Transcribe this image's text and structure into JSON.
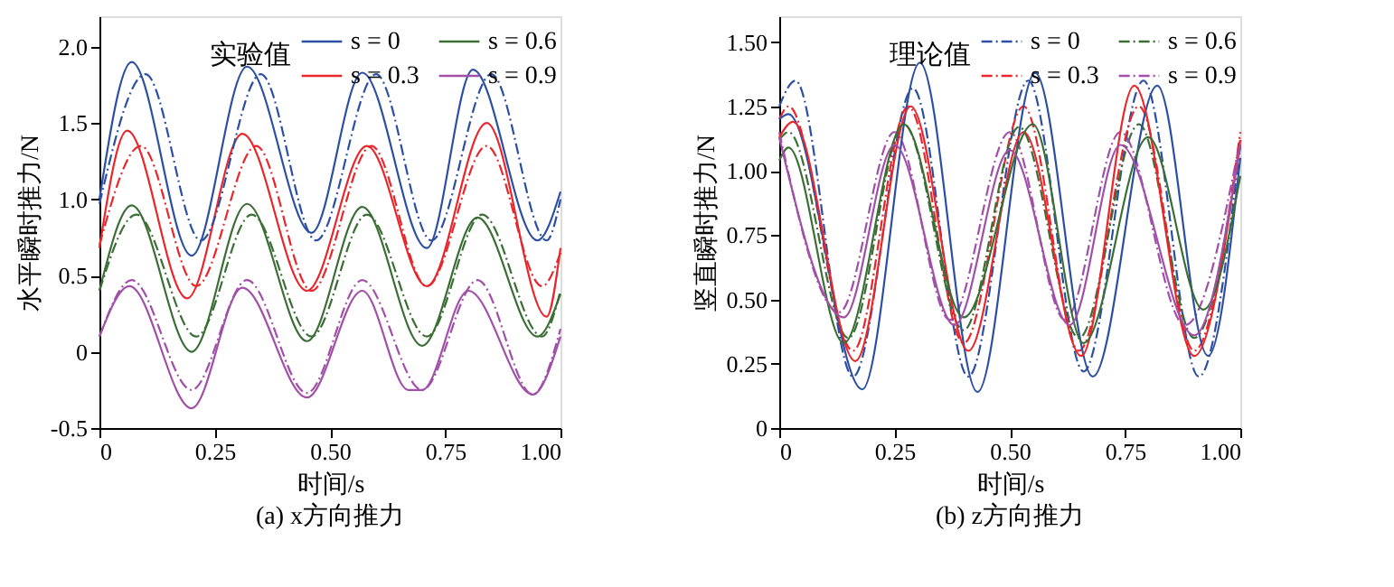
{
  "chart_data": [
    {
      "type": "line",
      "title": "(a) x方向推力",
      "xlabel": "时间/s",
      "ylabel": "水平瞬时推力/N",
      "legend_title": "实验值",
      "legend": "top right",
      "grid": false,
      "xlim": [
        0,
        1
      ],
      "xticks": [
        0,
        {
          "value": 0.25,
          "label": "0.25"
        },
        {
          "value": 0.5,
          "label": "0.50"
        },
        {
          "value": 0.75,
          "label": "0.75"
        },
        {
          "value": 1,
          "label": "1.00"
        }
      ],
      "ylim": [
        -0.5,
        2.2
      ],
      "yticks": [
        -0.5,
        0,
        {
          "value": 0.5,
          "label": "0.5"
        },
        {
          "value": 1,
          "label": "1.0"
        },
        {
          "value": 1.5,
          "label": "1.5"
        },
        {
          "value": 2,
          "label": "2.0"
        }
      ],
      "series": [
        {
          "name": "s = 0",
          "color": "#2c4fa3",
          "line_style": "solid",
          "x": [
            0,
            0.07,
            0.2,
            0.32,
            0.46,
            0.57,
            0.71,
            0.81,
            0.95,
            1.0
          ],
          "values": [
            1.0,
            1.9,
            0.63,
            1.87,
            0.78,
            1.83,
            0.68,
            1.85,
            0.73,
            1.05
          ]
        },
        {
          "name": "s = 0.3",
          "color": "#e8262b",
          "line_style": "solid",
          "x": [
            0,
            0.06,
            0.19,
            0.31,
            0.45,
            0.58,
            0.71,
            0.84,
            0.97,
            1.0
          ],
          "values": [
            0.68,
            1.45,
            0.35,
            1.43,
            0.4,
            1.35,
            0.43,
            1.5,
            0.23,
            0.68
          ]
        },
        {
          "name": "s = 0.6",
          "color": "#3a6e35",
          "line_style": "solid",
          "x": [
            0,
            0.07,
            0.2,
            0.32,
            0.45,
            0.57,
            0.7,
            0.82,
            0.95,
            1.0
          ],
          "values": [
            0.4,
            0.96,
            0.0,
            0.97,
            0.07,
            0.95,
            0.04,
            0.88,
            0.1,
            0.38
          ]
        },
        {
          "name": "s = 0.9",
          "color": "#a14fa8",
          "line_style": "solid",
          "x": [
            0,
            0.065,
            0.2,
            0.31,
            0.45,
            0.57,
            0.67,
            0.7,
            0.8,
            0.94,
            1.0
          ],
          "values": [
            0.1,
            0.43,
            -0.37,
            0.42,
            -0.3,
            0.4,
            -0.25,
            -0.25,
            0.4,
            -0.28,
            0.1
          ]
        },
        {
          "color": "#2c4fa3",
          "line_style": "dashed",
          "x": [
            0,
            0.1,
            0.22,
            0.35,
            0.47,
            0.6,
            0.72,
            0.85,
            0.97,
            1.0
          ],
          "values": [
            0.97,
            1.82,
            0.73,
            1.82,
            0.73,
            1.82,
            0.73,
            1.82,
            0.73,
            1.0
          ]
        },
        {
          "color": "#e8262b",
          "line_style": "dashed",
          "x": [
            0,
            0.09,
            0.21,
            0.34,
            0.46,
            0.59,
            0.71,
            0.84,
            0.96,
            1.0
          ],
          "values": [
            0.7,
            1.35,
            0.43,
            1.35,
            0.4,
            1.35,
            0.43,
            1.35,
            0.43,
            0.65
          ]
        },
        {
          "color": "#3a6e35",
          "line_style": "dashed",
          "x": [
            0,
            0.08,
            0.21,
            0.33,
            0.46,
            0.58,
            0.71,
            0.83,
            0.96,
            1.0
          ],
          "values": [
            0.4,
            0.9,
            0.1,
            0.9,
            0.1,
            0.9,
            0.1,
            0.9,
            0.1,
            0.4
          ]
        },
        {
          "color": "#a14fa8",
          "line_style": "dashed",
          "x": [
            0,
            0.07,
            0.2,
            0.32,
            0.45,
            0.57,
            0.7,
            0.82,
            0.94,
            1.0
          ],
          "values": [
            0.1,
            0.47,
            -0.25,
            0.47,
            -0.27,
            0.47,
            -0.25,
            0.47,
            -0.28,
            0.15
          ]
        }
      ]
    },
    {
      "type": "line",
      "title": "(b) z方向推力",
      "xlabel": "时间/s",
      "ylabel": "竖直瞬时推力/N",
      "legend_title": "理论值",
      "legend": "top right",
      "grid": false,
      "xlim": [
        0,
        1
      ],
      "xticks": [
        0,
        {
          "value": 0.25,
          "label": "0.25"
        },
        {
          "value": 0.5,
          "label": "0.50"
        },
        {
          "value": 0.75,
          "label": "0.75"
        },
        {
          "value": 1,
          "label": "1.00"
        }
      ],
      "ylim": [
        0,
        1.6
      ],
      "yticks": [
        0,
        0.25,
        {
          "value": 0.5,
          "label": "0.50"
        },
        {
          "value": 0.75,
          "label": "0.75"
        },
        {
          "value": 1,
          "label": "1.00"
        },
        {
          "value": 1.25,
          "label": "1.25"
        },
        {
          "value": 1.5,
          "label": "1.50"
        }
      ],
      "series": [
        {
          "name": "s = 0",
          "color": "#2c4fa3",
          "line_style": "dashed",
          "x": [
            0,
            0.035,
            0.16,
            0.29,
            0.41,
            0.54,
            0.66,
            0.79,
            0.91,
            1.0
          ],
          "values": [
            1.25,
            1.35,
            0.2,
            1.32,
            0.2,
            1.35,
            0.22,
            1.35,
            0.2,
            1.1
          ]
        },
        {
          "name": "s = 0.3",
          "color": "#e8262b",
          "line_style": "dashed",
          "x": [
            0,
            0.02,
            0.16,
            0.28,
            0.4,
            0.53,
            0.65,
            0.78,
            0.9,
            1.0
          ],
          "values": [
            1.2,
            1.25,
            0.3,
            1.25,
            0.33,
            1.25,
            0.3,
            1.25,
            0.3,
            1.15
          ]
        },
        {
          "name": "s = 0.6",
          "color": "#3a6e35",
          "line_style": "dashed",
          "x": [
            0,
            0.02,
            0.15,
            0.27,
            0.4,
            0.52,
            0.65,
            0.78,
            0.9,
            1.0
          ],
          "values": [
            1.12,
            1.15,
            0.35,
            1.18,
            0.38,
            1.17,
            0.35,
            1.18,
            0.35,
            1.1
          ]
        },
        {
          "name": "s = 0.9",
          "color": "#a14fa8",
          "line_style": "dashed",
          "x": [
            0,
            0.13,
            0.25,
            0.37,
            0.5,
            0.62,
            0.74,
            0.88,
            1.0
          ],
          "values": [
            1.15,
            0.45,
            1.15,
            0.42,
            1.15,
            0.42,
            1.15,
            0.4,
            1.12
          ]
        },
        {
          "color": "#2c4fa3",
          "line_style": "solid",
          "x": [
            0,
            0.02,
            0.18,
            0.305,
            0.43,
            0.555,
            0.68,
            0.82,
            0.93,
            1.0
          ],
          "values": [
            1.2,
            1.22,
            0.15,
            1.42,
            0.14,
            1.38,
            0.2,
            1.33,
            0.28,
            1.05
          ]
        },
        {
          "color": "#e8262b",
          "line_style": "solid",
          "x": [
            0,
            0.03,
            0.165,
            0.285,
            0.41,
            0.53,
            0.655,
            0.77,
            0.9,
            1.0
          ],
          "values": [
            1.13,
            1.19,
            0.26,
            1.25,
            0.3,
            1.15,
            0.28,
            1.33,
            0.28,
            1.12
          ]
        },
        {
          "color": "#3a6e35",
          "line_style": "solid",
          "x": [
            0,
            0.02,
            0.14,
            0.27,
            0.4,
            0.55,
            0.66,
            0.8,
            0.92,
            1.0
          ],
          "values": [
            1.04,
            1.09,
            0.33,
            1.18,
            0.43,
            1.18,
            0.33,
            1.13,
            0.46,
            0.98
          ]
        },
        {
          "color": "#a14fa8",
          "line_style": "solid",
          "x": [
            0,
            0.14,
            0.25,
            0.38,
            0.5,
            0.63,
            0.74,
            0.9,
            1.0
          ],
          "values": [
            1.13,
            0.43,
            1.1,
            0.4,
            1.08,
            0.4,
            1.1,
            0.36,
            1.1
          ]
        }
      ]
    }
  ]
}
